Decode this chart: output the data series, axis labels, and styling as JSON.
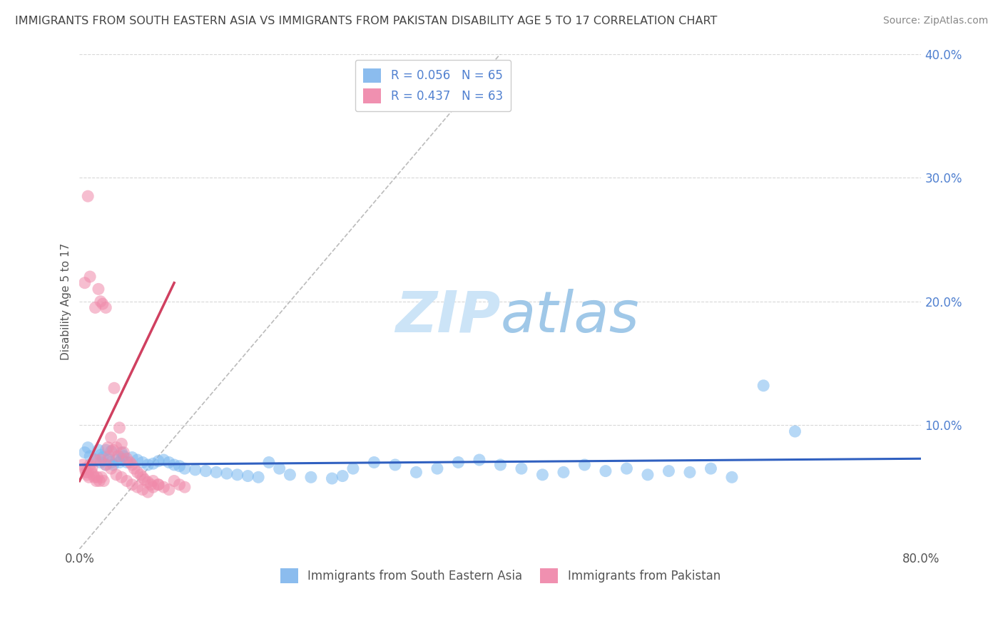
{
  "title": "IMMIGRANTS FROM SOUTH EASTERN ASIA VS IMMIGRANTS FROM PAKISTAN DISABILITY AGE 5 TO 17 CORRELATION CHART",
  "source": "Source: ZipAtlas.com",
  "ylabel": "Disability Age 5 to 17",
  "watermark_zip": "ZIP",
  "watermark_atlas": "atlas",
  "xmin": 0.0,
  "xmax": 0.8,
  "ymin": 0.0,
  "ymax": 0.4,
  "yticks": [
    0.1,
    0.2,
    0.3,
    0.4
  ],
  "xticks": [
    0.0,
    0.8
  ],
  "title_fontsize": 11.5,
  "source_fontsize": 10,
  "axis_label_fontsize": 11,
  "tick_fontsize": 12,
  "legend_fontsize": 12,
  "watermark_fontsize": 58,
  "watermark_color": "#cce4f7",
  "background_color": "#ffffff",
  "grid_color": "#d8d8d8",
  "blue_scatter_color": "#7ab8f0",
  "pink_scatter_color": "#f08aaa",
  "blue_line_color": "#3060c0",
  "pink_line_color": "#d04060",
  "diag_line_color": "#bbbbbb",
  "tick_color_y": "#5080d0",
  "tick_color_x": "#555555",
  "legend_label1": "R = 0.056   N = 65",
  "legend_label2": "R = 0.437   N = 63",
  "legend_color1": "#8bbcee",
  "legend_color2": "#f090b0",
  "bottom_legend_1": "Immigrants from South Eastern Asia",
  "bottom_legend_2": "Immigrants from Pakistan",
  "blue_line_x": [
    0.0,
    0.8
  ],
  "blue_line_y": [
    0.068,
    0.073
  ],
  "pink_line_x": [
    0.0,
    0.09
  ],
  "pink_line_y": [
    0.055,
    0.215
  ],
  "diag_line_x": [
    0.0,
    0.4
  ],
  "diag_line_y": [
    0.0,
    0.4
  ],
  "blue_x": [
    0.005,
    0.008,
    0.01,
    0.015,
    0.018,
    0.02,
    0.02,
    0.022,
    0.025,
    0.025,
    0.028,
    0.03,
    0.03,
    0.032,
    0.035,
    0.038,
    0.04,
    0.04,
    0.042,
    0.045,
    0.05,
    0.055,
    0.06,
    0.065,
    0.07,
    0.075,
    0.08,
    0.085,
    0.09,
    0.095,
    0.1,
    0.11,
    0.12,
    0.13,
    0.14,
    0.15,
    0.16,
    0.17,
    0.18,
    0.19,
    0.2,
    0.22,
    0.24,
    0.25,
    0.26,
    0.28,
    0.3,
    0.32,
    0.34,
    0.36,
    0.38,
    0.4,
    0.42,
    0.44,
    0.46,
    0.48,
    0.5,
    0.52,
    0.54,
    0.56,
    0.58,
    0.6,
    0.62,
    0.65,
    0.68
  ],
  "blue_y": [
    0.078,
    0.082,
    0.075,
    0.072,
    0.08,
    0.07,
    0.076,
    0.074,
    0.08,
    0.068,
    0.072,
    0.07,
    0.079,
    0.068,
    0.072,
    0.07,
    0.073,
    0.078,
    0.075,
    0.07,
    0.074,
    0.072,
    0.07,
    0.068,
    0.069,
    0.071,
    0.072,
    0.07,
    0.068,
    0.067,
    0.065,
    0.064,
    0.063,
    0.062,
    0.061,
    0.06,
    0.059,
    0.058,
    0.07,
    0.065,
    0.06,
    0.058,
    0.057,
    0.059,
    0.065,
    0.07,
    0.068,
    0.062,
    0.065,
    0.07,
    0.072,
    0.068,
    0.065,
    0.06,
    0.062,
    0.068,
    0.063,
    0.065,
    0.06,
    0.063,
    0.062,
    0.065,
    0.058,
    0.132,
    0.095
  ],
  "pink_x": [
    0.003,
    0.005,
    0.006,
    0.007,
    0.008,
    0.009,
    0.01,
    0.011,
    0.012,
    0.013,
    0.014,
    0.015,
    0.016,
    0.017,
    0.018,
    0.019,
    0.02,
    0.021,
    0.022,
    0.023,
    0.025,
    0.027,
    0.028,
    0.03,
    0.032,
    0.033,
    0.035,
    0.037,
    0.038,
    0.04,
    0.042,
    0.045,
    0.048,
    0.05,
    0.052,
    0.055,
    0.058,
    0.06,
    0.062,
    0.065,
    0.068,
    0.07,
    0.075,
    0.08,
    0.085,
    0.09,
    0.095,
    0.1,
    0.005,
    0.01,
    0.015,
    0.02,
    0.025,
    0.03,
    0.035,
    0.04,
    0.045,
    0.05,
    0.055,
    0.06,
    0.065,
    0.07,
    0.075
  ],
  "pink_y": [
    0.068,
    0.065,
    0.062,
    0.06,
    0.062,
    0.058,
    0.068,
    0.063,
    0.066,
    0.06,
    0.058,
    0.072,
    0.055,
    0.058,
    0.21,
    0.055,
    0.2,
    0.058,
    0.198,
    0.055,
    0.195,
    0.082,
    0.075,
    0.09,
    0.08,
    0.13,
    0.082,
    0.075,
    0.098,
    0.085,
    0.078,
    0.073,
    0.07,
    0.068,
    0.065,
    0.062,
    0.06,
    0.058,
    0.056,
    0.054,
    0.052,
    0.05,
    0.052,
    0.05,
    0.048,
    0.055,
    0.052,
    0.05,
    0.215,
    0.22,
    0.195,
    0.072,
    0.068,
    0.065,
    0.06,
    0.058,
    0.055,
    0.052,
    0.05,
    0.048,
    0.046,
    0.055,
    0.052
  ],
  "pink_outlier_x": [
    0.008
  ],
  "pink_outlier_y": [
    0.285
  ]
}
